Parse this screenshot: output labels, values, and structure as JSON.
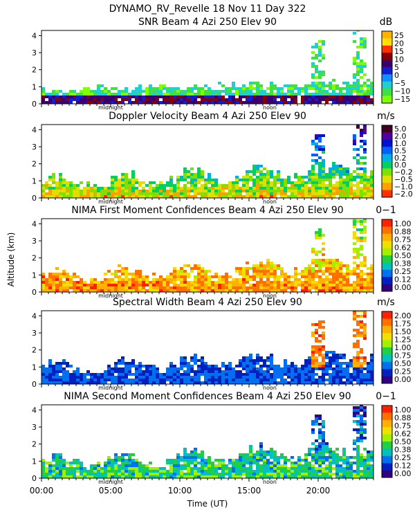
{
  "figure": {
    "title": "DYNAMO_RV_Revelle  18 Nov 11 Day 322",
    "xlabel": "Time (UT)",
    "ylabel": "Altitude (km)",
    "x_ticks": [
      "00:00",
      "05:00",
      "10:00",
      "15:00",
      "20:00"
    ],
    "x_tick_hours": [
      0,
      5,
      10,
      15,
      20
    ],
    "day_markers": [
      {
        "label": "midnight",
        "hour": 5.0
      },
      {
        "label": "noon",
        "hour": 16.5
      }
    ]
  },
  "chart_data": [
    {
      "type": "heatmap",
      "title": "SNR Beam 4 Azi 250 Elev 90",
      "units": "dB",
      "xlim": [
        0,
        24
      ],
      "ylim": [
        0,
        4.3
      ],
      "y_ticks": [
        0,
        1,
        2,
        3,
        4
      ],
      "colorbar": {
        "labels": [
          "25",
          "20",
          "15",
          "10",
          "5",
          "0",
          "−5",
          "−10",
          "−15"
        ],
        "colors": [
          "#ffb000",
          "#ffe000",
          "#ff3000",
          "#880000",
          "#3a0070",
          "#1020d0",
          "#1090ff",
          "#20d0d0",
          "#40e040",
          "#80ff00"
        ]
      }
    },
    {
      "type": "heatmap",
      "title": "Doppler Velocity Beam 4 Azi 250 Elev 90",
      "units": "m/s",
      "xlim": [
        0,
        24
      ],
      "ylim": [
        0,
        4.3
      ],
      "y_ticks": [
        0,
        1,
        2,
        3,
        4
      ],
      "colorbar": {
        "labels": [
          "5.0",
          "2.0",
          "1.0",
          "0.5",
          "0.2",
          "0.0",
          "−0.2",
          "−0.5",
          "−1.0",
          "−2.0"
        ],
        "colors": [
          "#400020",
          "#5000a0",
          "#0010d0",
          "#0060ff",
          "#00b0e0",
          "#00d060",
          "#80e000",
          "#e0e000",
          "#ffa000",
          "#ff3000"
        ]
      }
    },
    {
      "type": "heatmap",
      "title": "NIMA First Moment Confidences Beam 4 Azi 250 Elev 90",
      "units": "0−1",
      "xlim": [
        0,
        24
      ],
      "ylim": [
        0,
        4.3
      ],
      "y_ticks": [
        0,
        1,
        2,
        3,
        4
      ],
      "colorbar": {
        "labels": [
          "1.00",
          "0.88",
          "0.75",
          "0.62",
          "0.50",
          "0.38",
          "0.25",
          "0.12",
          "0.00"
        ],
        "colors": [
          "#ff2000",
          "#ff7000",
          "#ffb000",
          "#f0e000",
          "#a0f000",
          "#20d040",
          "#00c0c0",
          "#0070f0",
          "#0020c0",
          "#300080"
        ]
      }
    },
    {
      "type": "heatmap",
      "title": "Spectral Width Beam 4 Azi 250 Elev 90",
      "units": "m/s",
      "xlim": [
        0,
        24
      ],
      "ylim": [
        0,
        4.3
      ],
      "y_ticks": [
        0,
        1,
        2,
        3,
        4
      ],
      "colorbar": {
        "labels": [
          "2.00",
          "1.75",
          "1.50",
          "1.25",
          "1.00",
          "0.75",
          "0.50",
          "0.25",
          "0.00"
        ],
        "colors": [
          "#ff2000",
          "#ff7000",
          "#ffb000",
          "#f0e000",
          "#a0f000",
          "#20d040",
          "#00c0c0",
          "#0070f0",
          "#0020c0",
          "#300080"
        ]
      }
    },
    {
      "type": "heatmap",
      "title": "NIMA Second Moment Confidences Beam 4 Azi 250 Elev 90",
      "units": "0−1",
      "xlim": [
        0,
        24
      ],
      "ylim": [
        0,
        4.3
      ],
      "y_ticks": [
        0,
        1,
        2,
        3,
        4
      ],
      "colorbar": {
        "labels": [
          "1.00",
          "0.88",
          "0.75",
          "0.62",
          "0.50",
          "0.38",
          "0.25",
          "0.12",
          "0.00"
        ],
        "colors": [
          "#ff2000",
          "#ff7000",
          "#ffb000",
          "#f0e000",
          "#a0f000",
          "#20d040",
          "#00c0c0",
          "#0070f0",
          "#0020c0",
          "#300080"
        ]
      }
    }
  ]
}
